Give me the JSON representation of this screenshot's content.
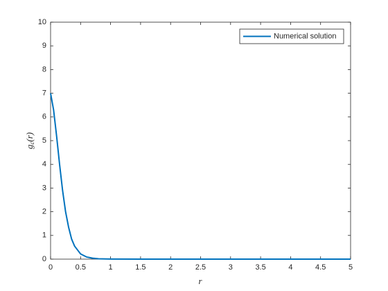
{
  "chart_data": {
    "type": "line",
    "xlabel": "r",
    "ylabel": {
      "base": "g",
      "sub": "c",
      "arg": "(r)"
    },
    "x": [
      0,
      0.05,
      0.1,
      0.15,
      0.2,
      0.25,
      0.3,
      0.35,
      0.4,
      0.5,
      0.6,
      0.7,
      0.8,
      1,
      1.5,
      2,
      2.5,
      3,
      3.5,
      4,
      4.5,
      5
    ],
    "series": [
      {
        "name": "Numerical solution",
        "color": "#0072bd",
        "values": [
          7,
          6.3,
          5.2,
          4.0,
          2.9,
          2.0,
          1.35,
          0.85,
          0.55,
          0.22,
          0.09,
          0.04,
          0.015,
          0.003,
          0,
          0,
          0,
          0,
          0,
          0,
          0,
          0
        ]
      }
    ],
    "xlim": [
      0,
      5
    ],
    "ylim": [
      0,
      10
    ],
    "xticks": [
      0,
      0.5,
      1,
      1.5,
      2,
      2.5,
      3,
      3.5,
      4,
      4.5,
      5
    ],
    "yticks": [
      0,
      1,
      2,
      3,
      4,
      5,
      6,
      7,
      8,
      9,
      10
    ],
    "grid": false,
    "legend": "northeast"
  }
}
